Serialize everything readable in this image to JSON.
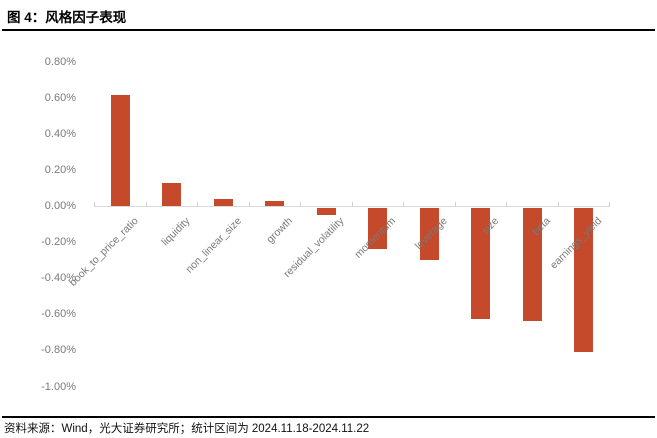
{
  "title": "图 4：风格因子表现",
  "footer": {
    "source": "资料来源：Wind，光大证券研究所；统计区间为 2024.11.18-2024.11.22"
  },
  "chart_data": {
    "type": "bar",
    "title": "风格因子表现",
    "categories": [
      "book_to_price_ratio",
      "liquidity",
      "non_linear_size",
      "growth",
      "residual_volatility",
      "momentum",
      "leverage",
      "size",
      "beta",
      "earnings_yield"
    ],
    "values": [
      0.62,
      0.13,
      0.04,
      0.03,
      -0.04,
      -0.23,
      -0.29,
      -0.62,
      -0.63,
      -0.8
    ],
    "value_unit": "%",
    "xlabel": "",
    "ylabel": "",
    "ylim": [
      -1.0,
      0.8
    ],
    "ytick_labels": [
      "0.80%",
      "0.60%",
      "0.40%",
      "0.20%",
      "0.00%",
      "-0.20%",
      "-0.40%",
      "-0.60%",
      "-0.80%",
      "-1.00%"
    ],
    "grid": false,
    "legend_position": "none",
    "bar_color": "#c5492b",
    "axis_label_color": "#7a7a7a",
    "axis_line_color": "#d9d9d9"
  }
}
